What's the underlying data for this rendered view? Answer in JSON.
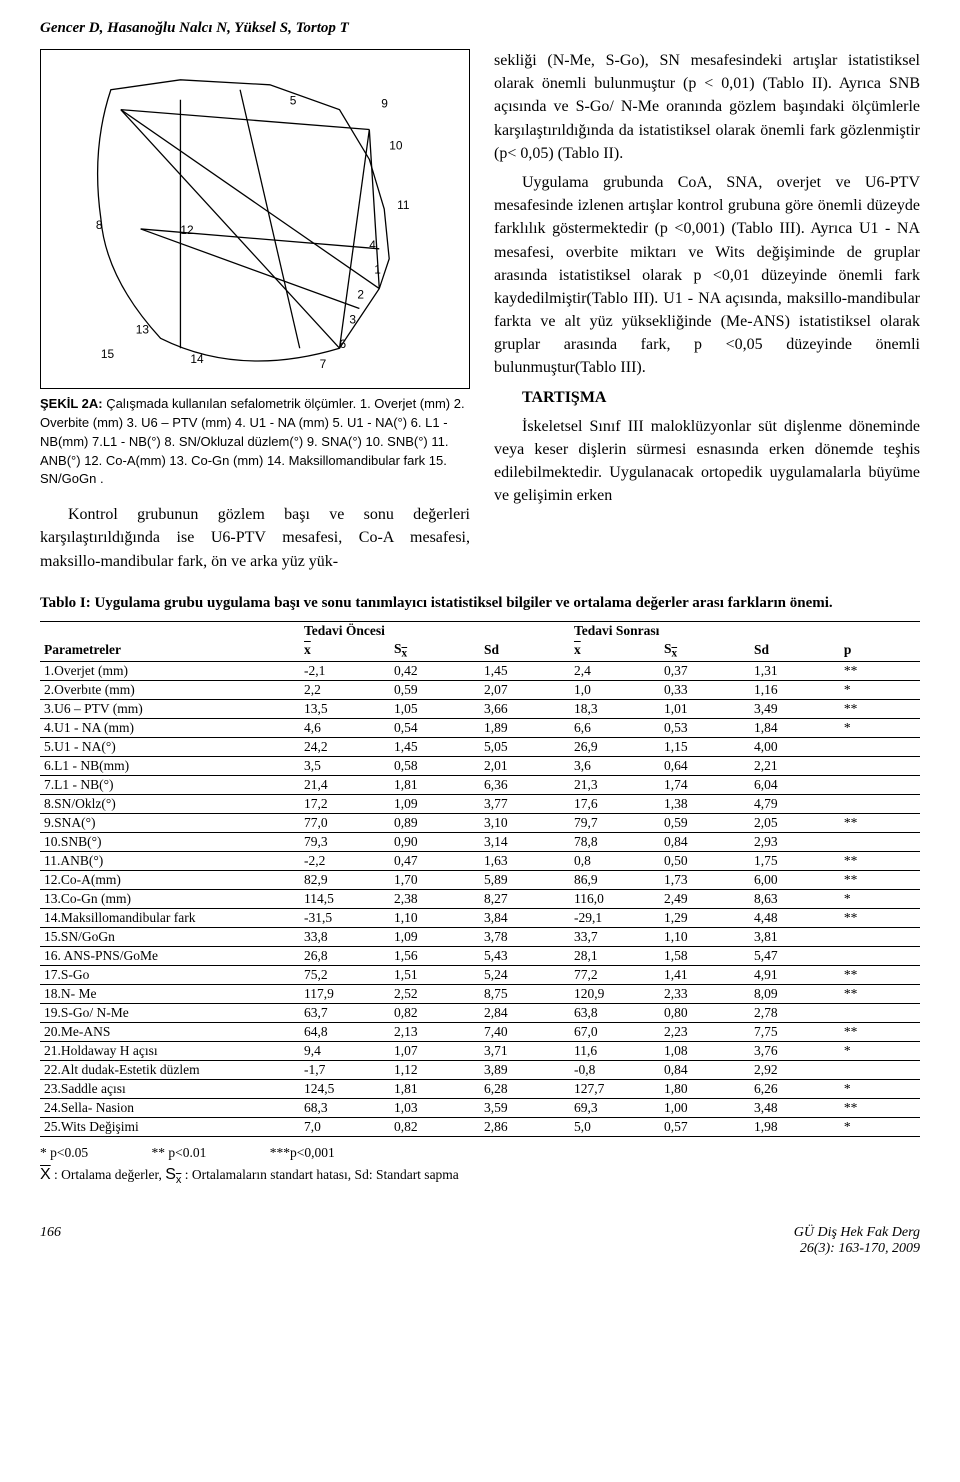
{
  "running_head": "Gencer D, Hasanoğlu Nalcı N, Yüksel S, Tortop T",
  "figure": {
    "label": "ŞEKİL 2A:",
    "caption": "Çalışmada kullanılan sefalometrik ölçümler. 1. Overjet (mm) 2. Overbite (mm) 3. U6 – PTV (mm) 4. U1 - NA (mm) 5. U1 - NA(°) 6. L1 - NB(mm) 7.L1 - NB(°) 8. SN/Okluzal düzlem(°) 9. SNA(°) 10. SNB(°) 11. ANB(°) 12. Co-A(mm) 13. Co-Gn (mm) 14. Maksillomandibular fark 15. SN/GoGn ."
  },
  "left_paragraph": "Kontrol grubunun gözlem başı ve sonu değerleri karşılaştırıldığında ise U6-PTV mesafesi, Co-A mesafesi, maksillo-mandibular fark, ön ve arka yüz yük-",
  "right_paragraphs": [
    "sekliği (N-Me, S-Go), SN mesafesindeki artışlar istatistiksel olarak önemli bulunmuştur (p < 0,01) (Tablo II). Ayrıca SNB açısında ve S-Go/ N-Me oranında gözlem başındaki ölçümlerle karşılaştırıldığında da istatistiksel olarak önemli fark gözlenmiştir (p< 0,05) (Tablo II).",
    "Uygulama grubunda CoA, SNA, overjet ve U6-PTV mesafesinde izlenen artışlar kontrol grubuna göre önemli düzeyde farklılık göstermektedir (p <0,001) (Tablo III). Ayrıca U1 - NA mesafesi, overbite miktarı ve Wits değişiminde de gruplar arasında istatistiksel olarak p <0,01 düzeyinde önemli fark kaydedilmiştir(Tablo III). U1 - NA açısında, maksillo-mandibular farkta ve alt yüz yüksekliğinde (Me-ANS) istatistiksel olarak gruplar arasında fark, p <0,05 düzeyinde önemli bulunmuştur(Tablo III)."
  ],
  "tartisma_head": "TARTIŞMA",
  "tartisma_para": "İskeletsel Sınıf III maloklüzyonlar süt dişlenme döneminde veya keser dişlerin sürmesi esnasında erken dönemde teşhis edilebilmektedir. Uygulanacak ortopedik uygulamalarla büyüme ve gelişimin erken",
  "table": {
    "caption": "Tablo I: Uygulama grubu uygulama başı ve sonu tanımlayıcı istatistiksel bilgiler ve ortalama değerler arası farkların önemi.",
    "group_headers": [
      "Tedavi Öncesi",
      "Tedavi Sonrası"
    ],
    "col_headers": [
      "Parametreler",
      "x̄",
      "Sx̄",
      "Sd",
      "x̄",
      "Sx̄",
      "Sd",
      "p"
    ],
    "rows": [
      [
        "1.Overjet (mm)",
        "-2,1",
        "0,42",
        "1,45",
        "2,4",
        "0,37",
        "1,31",
        "**"
      ],
      [
        "2.Overbıte (mm)",
        "2,2",
        "0,59",
        "2,07",
        "1,0",
        "0,33",
        "1,16",
        "*"
      ],
      [
        "3.U6 – PTV (mm)",
        "13,5",
        "1,05",
        "3,66",
        "18,3",
        "1,01",
        "3,49",
        "**"
      ],
      [
        "4.U1 - NA (mm)",
        "4,6",
        "0,54",
        "1,89",
        "6,6",
        "0,53",
        "1,84",
        "*"
      ],
      [
        "5.U1 - NA(°)",
        "24,2",
        "1,45",
        "5,05",
        "26,9",
        "1,15",
        "4,00",
        ""
      ],
      [
        "6.L1 - NB(mm)",
        "3,5",
        "0,58",
        "2,01",
        "3,6",
        "0,64",
        "2,21",
        ""
      ],
      [
        "7.L1 - NB(°)",
        "21,4",
        "1,81",
        "6,36",
        "21,3",
        "1,74",
        "6,04",
        ""
      ],
      [
        "8.SN/Oklz(°)",
        "17,2",
        "1,09",
        "3,77",
        "17,6",
        "1,38",
        "4,79",
        ""
      ],
      [
        "9.SNA(°)",
        "77,0",
        "0,89",
        "3,10",
        "79,7",
        "0,59",
        "2,05",
        "**"
      ],
      [
        "10.SNB(°)",
        "79,3",
        "0,90",
        "3,14",
        "78,8",
        "0,84",
        "2,93",
        ""
      ],
      [
        "11.ANB(°)",
        "-2,2",
        "0,47",
        "1,63",
        "0,8",
        "0,50",
        "1,75",
        "**"
      ],
      [
        "12.Co-A(mm)",
        "82,9",
        "1,70",
        "5,89",
        "86,9",
        "1,73",
        "6,00",
        "**"
      ],
      [
        "13.Co-Gn (mm)",
        "114,5",
        "2,38",
        "8,27",
        "116,0",
        "2,49",
        "8,63",
        "*"
      ],
      [
        "14.Maksillomandibular fark",
        "-31,5",
        "1,10",
        "3,84",
        "-29,1",
        "1,29",
        "4,48",
        "**"
      ],
      [
        "15.SN/GoGn",
        "33,8",
        "1,09",
        "3,78",
        "33,7",
        "1,10",
        "3,81",
        ""
      ],
      [
        "16. ANS-PNS/GoMe",
        "26,8",
        "1,56",
        "5,43",
        "28,1",
        "1,58",
        "5,47",
        ""
      ],
      [
        "17.S-Go",
        "75,2",
        "1,51",
        "5,24",
        "77,2",
        "1,41",
        "4,91",
        "**"
      ],
      [
        "18.N- Me",
        "117,9",
        "2,52",
        "8,75",
        "120,9",
        "2,33",
        "8,09",
        "**"
      ],
      [
        "19.S-Go/ N-Me",
        "63,7",
        "0,82",
        "2,84",
        "63,8",
        "0,80",
        "2,78",
        ""
      ],
      [
        "20.Me-ANS",
        "64,8",
        "2,13",
        "7,40",
        "67,0",
        "2,23",
        "7,75",
        "**"
      ],
      [
        "21.Holdaway H açısı",
        "9,4",
        "1,07",
        "3,71",
        "11,6",
        "1,08",
        "3,76",
        "*"
      ],
      [
        "22.Alt dudak-Estetik düzlem",
        "-1,7",
        "1,12",
        "3,89",
        "-0,8",
        "0,84",
        "2,92",
        ""
      ],
      [
        "23.Saddle açısı",
        "124,5",
        "1,81",
        "6,28",
        "127,7",
        "1,80",
        "6,26",
        "*"
      ],
      [
        "24.Sella- Nasion",
        "68,3",
        "1,03",
        "3,59",
        "69,3",
        "1,00",
        "3,48",
        "**"
      ],
      [
        "25.Wits Değişimi",
        "7,0",
        "0,82",
        "2,86",
        "5,0",
        "0,57",
        "1,98",
        "*"
      ]
    ],
    "sig_levels": [
      "*  p<0.05",
      "** p<0.01",
      "***p<0,001"
    ],
    "legend": ": Ortalama değerler, ",
    "legend2": " : Ortalamaların standart hatası, Sd: Standart sapma"
  },
  "footer": {
    "page": "166",
    "journal": "GÜ Diş Hek Fak Derg",
    "issue": "26(3): 163-170, 2009"
  },
  "colors": {
    "text": "#000000",
    "bg": "#ffffff",
    "rule": "#000000"
  },
  "col_widths_pct": [
    26,
    9,
    9,
    9,
    9,
    9,
    9,
    8
  ]
}
